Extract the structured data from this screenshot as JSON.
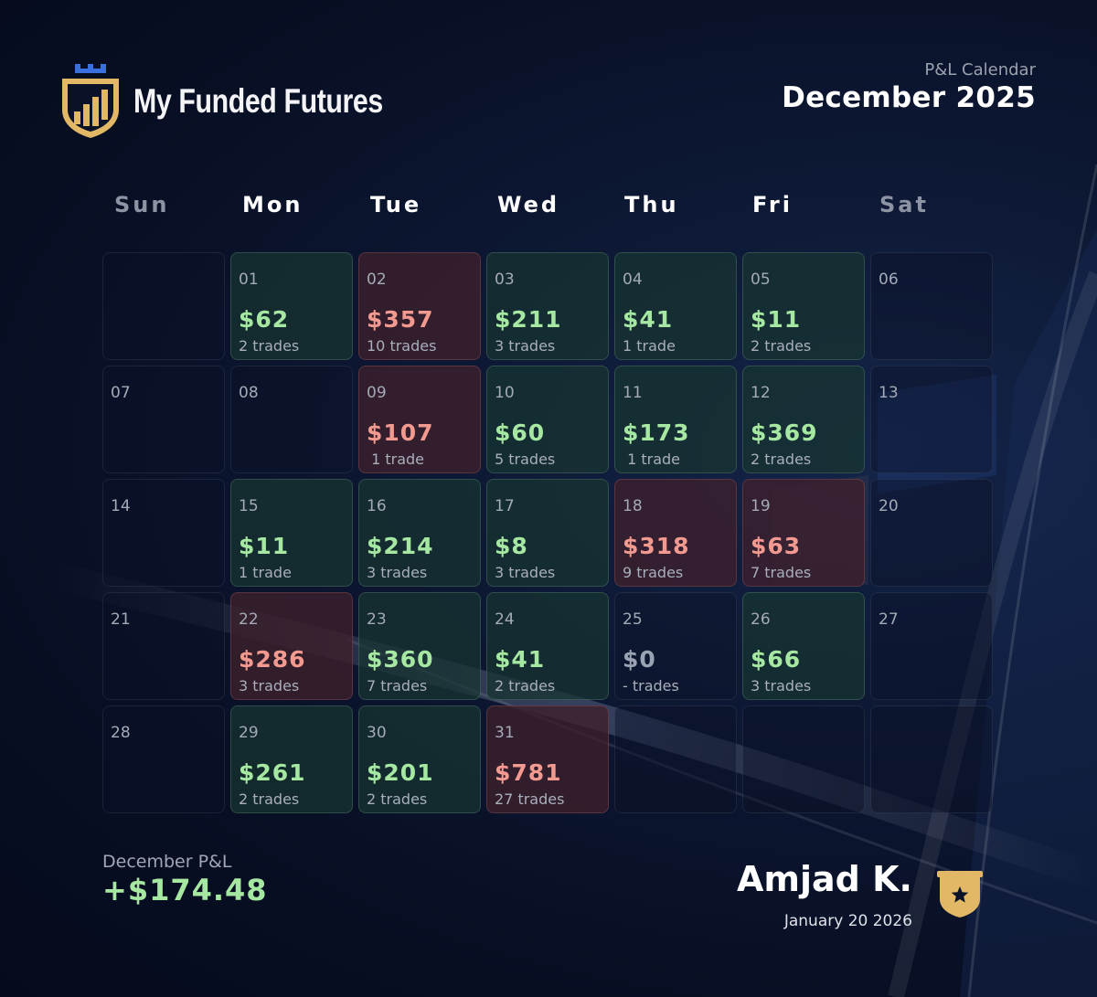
{
  "brand": {
    "name": "My Funded Futures",
    "logo_icon": "shield-bar-chart-icon",
    "gold": "#e2b866",
    "blue": "#3a6fe0"
  },
  "header": {
    "subtitle": "P&L Calendar",
    "title": "December 2025"
  },
  "weekdays": [
    "Sun",
    "Mon",
    "Tue",
    "Wed",
    "Thu",
    "Fri",
    "Sat"
  ],
  "colors": {
    "positive": "#a6e8a2",
    "negative": "#f39a90",
    "neutral": "#9aa3b4"
  },
  "calendar": {
    "weeks": [
      [
        {
          "day": "",
          "amount": "",
          "trades": "",
          "status": "empty"
        },
        {
          "day": "01",
          "amount": "$62",
          "trades": "2 trades",
          "status": "pos"
        },
        {
          "day": "02",
          "amount": "$357",
          "trades": "10 trades",
          "status": "neg"
        },
        {
          "day": "03",
          "amount": "$211",
          "trades": "3 trades",
          "status": "pos"
        },
        {
          "day": "04",
          "amount": "$41",
          "trades": "1 trade",
          "status": "pos"
        },
        {
          "day": "05",
          "amount": "$11",
          "trades": "2 trades",
          "status": "pos"
        },
        {
          "day": "06",
          "amount": "",
          "trades": "",
          "status": "empty"
        }
      ],
      [
        {
          "day": "07",
          "amount": "",
          "trades": "",
          "status": "empty"
        },
        {
          "day": "08",
          "amount": "",
          "trades": "",
          "status": "empty"
        },
        {
          "day": "09",
          "amount": "$107",
          "trades": " 1 trade",
          "status": "neg"
        },
        {
          "day": "10",
          "amount": "$60",
          "trades": "5 trades",
          "status": "pos"
        },
        {
          "day": "11",
          "amount": "$173",
          "trades": " 1 trade",
          "status": "pos"
        },
        {
          "day": "12",
          "amount": "$369",
          "trades": "2 trades",
          "status": "pos"
        },
        {
          "day": "13",
          "amount": "",
          "trades": "",
          "status": "empty"
        }
      ],
      [
        {
          "day": "14",
          "amount": "",
          "trades": "",
          "status": "empty"
        },
        {
          "day": "15",
          "amount": "$11",
          "trades": "1 trade",
          "status": "pos"
        },
        {
          "day": "16",
          "amount": "$214",
          "trades": "3 trades",
          "status": "pos"
        },
        {
          "day": "17",
          "amount": "$8",
          "trades": "3 trades",
          "status": "pos"
        },
        {
          "day": "18",
          "amount": "$318",
          "trades": "9 trades",
          "status": "neg"
        },
        {
          "day": "19",
          "amount": "$63",
          "trades": "7 trades",
          "status": "neg"
        },
        {
          "day": "20",
          "amount": "",
          "trades": "",
          "status": "empty"
        }
      ],
      [
        {
          "day": "21",
          "amount": "",
          "trades": "",
          "status": "empty"
        },
        {
          "day": "22",
          "amount": "$286",
          "trades": "3 trades",
          "status": "neg"
        },
        {
          "day": "23",
          "amount": "$360",
          "trades": "7 trades",
          "status": "pos"
        },
        {
          "day": "24",
          "amount": "$41",
          "trades": "2 trades",
          "status": "pos"
        },
        {
          "day": "25",
          "amount": "$0",
          "trades": "- trades",
          "status": "zero"
        },
        {
          "day": "26",
          "amount": "$66",
          "trades": "3 trades",
          "status": "pos"
        },
        {
          "day": "27",
          "amount": "",
          "trades": "",
          "status": "empty"
        }
      ],
      [
        {
          "day": "28",
          "amount": "",
          "trades": "",
          "status": "empty"
        },
        {
          "day": "29",
          "amount": "$261",
          "trades": "2 trades",
          "status": "pos"
        },
        {
          "day": "30",
          "amount": "$201",
          "trades": "2 trades",
          "status": "pos"
        },
        {
          "day": "31",
          "amount": "$781",
          "trades": "27 trades",
          "status": "neg"
        },
        {
          "day": "",
          "amount": "",
          "trades": "",
          "status": "empty"
        },
        {
          "day": "",
          "amount": "",
          "trades": "",
          "status": "empty"
        },
        {
          "day": "",
          "amount": "",
          "trades": "",
          "status": "empty"
        }
      ]
    ]
  },
  "summary": {
    "label": "December P&L",
    "value": "+$174.48"
  },
  "user": {
    "name": "Amjad K.",
    "date": "January 20 2026",
    "badge_icon": "star-shield-icon"
  }
}
